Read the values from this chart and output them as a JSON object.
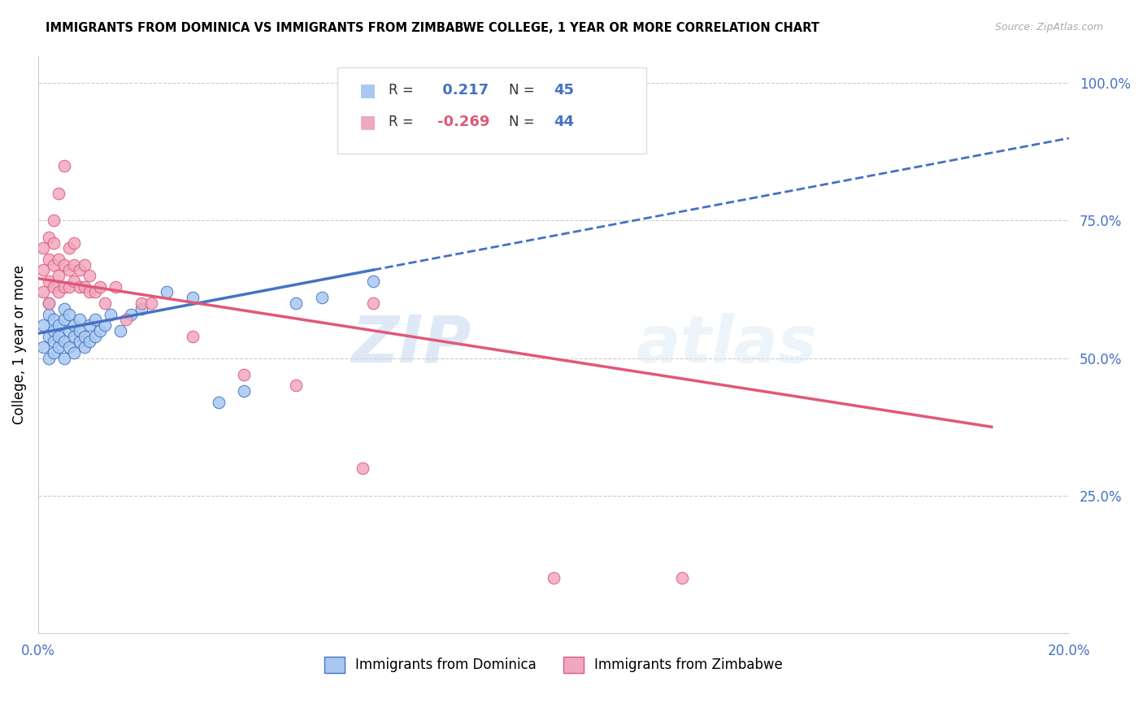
{
  "title": "IMMIGRANTS FROM DOMINICA VS IMMIGRANTS FROM ZIMBABWE COLLEGE, 1 YEAR OR MORE CORRELATION CHART",
  "source": "Source: ZipAtlas.com",
  "ylabel": "College, 1 year or more",
  "r_dominica": 0.217,
  "n_dominica": 45,
  "r_zimbabwe": -0.269,
  "n_zimbabwe": 44,
  "color_dominica": "#a8c8f0",
  "color_zimbabwe": "#f0a8c0",
  "line_color_dominica": "#4472c4",
  "line_color_zimbabwe": "#e05878",
  "watermark_zip": "ZIP",
  "watermark_atlas": "atlas",
  "xlim": [
    0.0,
    0.2
  ],
  "ylim": [
    0.0,
    1.05
  ],
  "right_yticks": [
    0.25,
    0.5,
    0.75,
    1.0
  ],
  "right_yticklabels": [
    "25.0%",
    "50.0%",
    "75.0%",
    "100.0%"
  ],
  "xticks": [
    0.0,
    0.05,
    0.1,
    0.15,
    0.2
  ],
  "xticklabels": [
    "0.0%",
    "",
    "",
    "",
    "20.0%"
  ],
  "blue_line_x0": 0.0,
  "blue_line_y0": 0.545,
  "blue_line_x1": 0.065,
  "blue_line_y1": 0.625,
  "blue_line_x2": 0.2,
  "blue_line_y2": 0.9,
  "pink_line_x0": 0.0,
  "pink_line_y0": 0.645,
  "pink_line_x1": 0.185,
  "pink_line_y1": 0.375,
  "dominica_x": [
    0.001,
    0.001,
    0.002,
    0.002,
    0.002,
    0.002,
    0.003,
    0.003,
    0.003,
    0.003,
    0.004,
    0.004,
    0.004,
    0.005,
    0.005,
    0.005,
    0.005,
    0.006,
    0.006,
    0.006,
    0.007,
    0.007,
    0.007,
    0.008,
    0.008,
    0.008,
    0.009,
    0.009,
    0.01,
    0.01,
    0.011,
    0.011,
    0.012,
    0.013,
    0.014,
    0.016,
    0.018,
    0.02,
    0.025,
    0.03,
    0.035,
    0.04,
    0.05,
    0.055,
    0.065
  ],
  "dominica_y": [
    0.52,
    0.56,
    0.5,
    0.54,
    0.58,
    0.6,
    0.51,
    0.55,
    0.53,
    0.57,
    0.52,
    0.56,
    0.54,
    0.5,
    0.53,
    0.57,
    0.59,
    0.52,
    0.55,
    0.58,
    0.51,
    0.54,
    0.56,
    0.53,
    0.55,
    0.57,
    0.52,
    0.54,
    0.56,
    0.53,
    0.54,
    0.57,
    0.55,
    0.56,
    0.58,
    0.55,
    0.58,
    0.59,
    0.62,
    0.61,
    0.42,
    0.44,
    0.6,
    0.61,
    0.64
  ],
  "zimbabwe_x": [
    0.001,
    0.001,
    0.001,
    0.002,
    0.002,
    0.002,
    0.002,
    0.003,
    0.003,
    0.003,
    0.003,
    0.004,
    0.004,
    0.004,
    0.004,
    0.005,
    0.005,
    0.005,
    0.006,
    0.006,
    0.006,
    0.007,
    0.007,
    0.007,
    0.008,
    0.008,
    0.009,
    0.009,
    0.01,
    0.01,
    0.011,
    0.012,
    0.013,
    0.015,
    0.017,
    0.02,
    0.022,
    0.03,
    0.04,
    0.05,
    0.063,
    0.065,
    0.1,
    0.125
  ],
  "zimbabwe_y": [
    0.62,
    0.66,
    0.7,
    0.6,
    0.64,
    0.68,
    0.72,
    0.63,
    0.67,
    0.71,
    0.75,
    0.62,
    0.65,
    0.68,
    0.8,
    0.63,
    0.67,
    0.85,
    0.63,
    0.66,
    0.7,
    0.64,
    0.67,
    0.71,
    0.63,
    0.66,
    0.63,
    0.67,
    0.62,
    0.65,
    0.62,
    0.63,
    0.6,
    0.63,
    0.57,
    0.6,
    0.6,
    0.54,
    0.47,
    0.45,
    0.3,
    0.6,
    0.1,
    0.1
  ]
}
